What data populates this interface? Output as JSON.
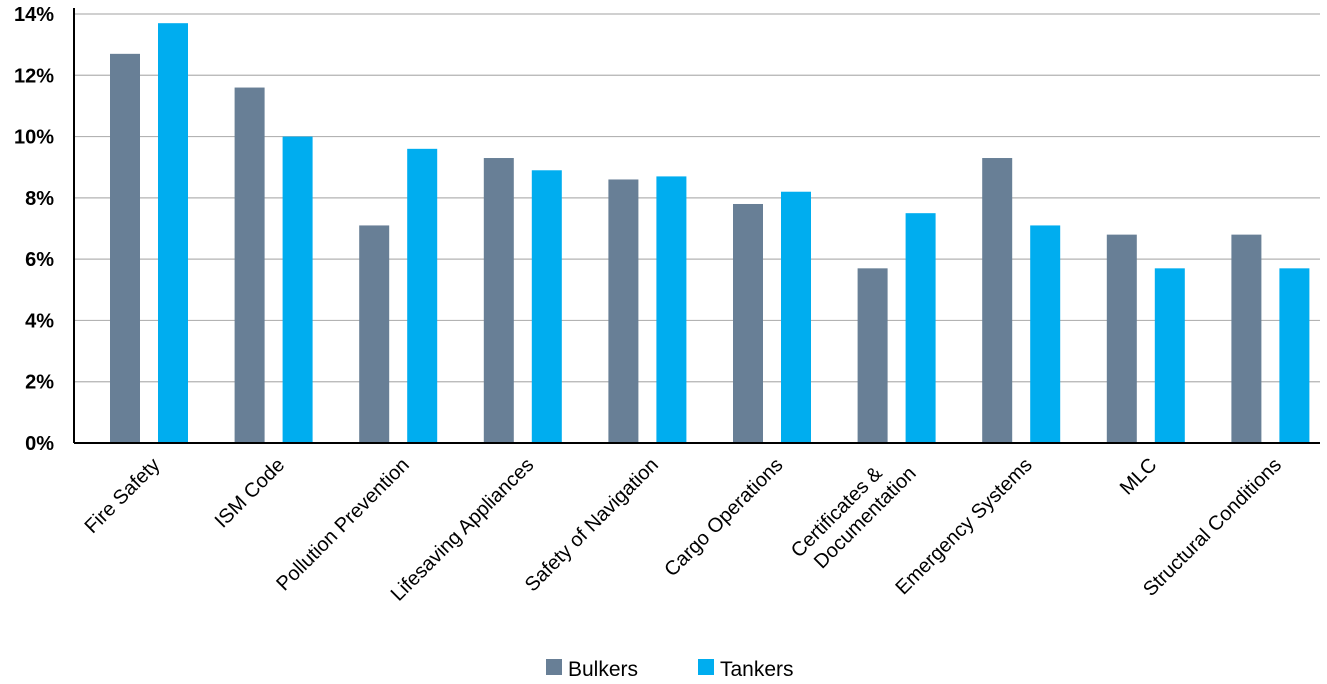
{
  "chart_data": {
    "type": "bar",
    "categories": [
      "Fire Safety",
      "ISM Code",
      "Pollution Prevention",
      "Lifesaving Appliances",
      "Safety of Navigation",
      "Cargo Operations",
      "Certificates & Documentation",
      "Emergency Systems",
      "MLC",
      "Structural Conditions"
    ],
    "series": [
      {
        "name": "Bulkers",
        "color": "#687f96",
        "values": [
          12.7,
          11.6,
          7.1,
          9.3,
          8.6,
          7.8,
          5.7,
          9.3,
          6.8,
          6.8
        ]
      },
      {
        "name": "Tankers",
        "color": "#00adef",
        "values": [
          13.7,
          10.0,
          9.6,
          8.9,
          8.7,
          8.2,
          7.5,
          7.1,
          5.7,
          5.7
        ]
      }
    ],
    "ylim": [
      0,
      14
    ],
    "yticks": [
      "0%",
      "2%",
      "4%",
      "6%",
      "8%",
      "10%",
      "12%",
      "14%"
    ],
    "title": "",
    "xlabel": "",
    "ylabel": "",
    "grid": true,
    "legend": "bottom-center"
  }
}
